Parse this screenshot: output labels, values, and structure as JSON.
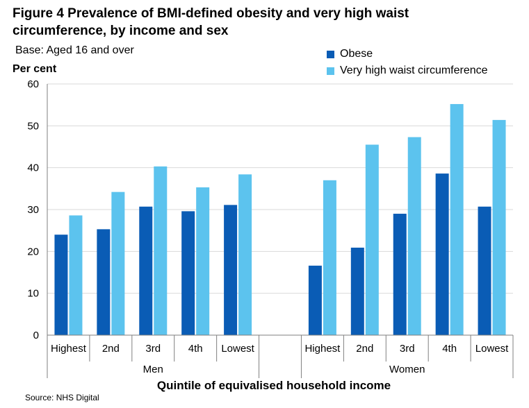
{
  "figure": {
    "title": "Figure 4 Prevalence of BMI-defined obesity and very high waist circumference, by income and sex",
    "base": "Base: Aged 16 and over",
    "source": "Source: NHS Digital"
  },
  "colors": {
    "obese": "#0a5cb5",
    "waist": "#5cc3ee",
    "grid": "#d9d9d9",
    "axis": "#7f7f7f"
  },
  "chart_data": {
    "type": "bar",
    "title": "Prevalence of BMI-defined obesity and very high waist circumference, by income and sex",
    "ylabel": "Per cent",
    "xlabel": "Quintile of equivalised household income",
    "ylim": [
      0,
      60
    ],
    "yticks": [
      0,
      10,
      20,
      30,
      40,
      50,
      60
    ],
    "grid": true,
    "legend_position": "top-right",
    "groups": [
      {
        "name": "Men",
        "categories": [
          "Highest",
          "2nd",
          "3rd",
          "4th",
          "Lowest"
        ]
      },
      {
        "name": "Women",
        "categories": [
          "Highest",
          "2nd",
          "3rd",
          "4th",
          "Lowest"
        ]
      }
    ],
    "series": [
      {
        "name": "Obese",
        "men": [
          24.0,
          25.3,
          30.7,
          29.6,
          31.1
        ],
        "women": [
          16.6,
          20.9,
          29.0,
          38.6,
          30.7
        ]
      },
      {
        "name": "Very high waist circumference",
        "men": [
          28.6,
          34.2,
          40.3,
          35.3,
          38.4
        ],
        "women": [
          37.0,
          45.5,
          47.3,
          55.2,
          51.4
        ]
      }
    ]
  }
}
